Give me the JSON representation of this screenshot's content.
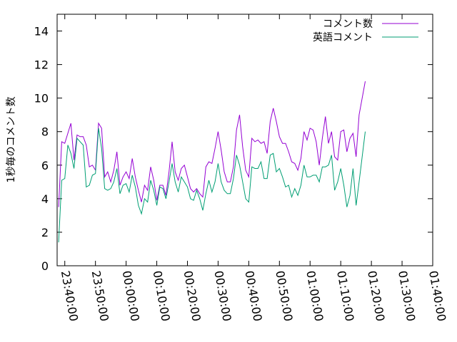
{
  "chart_data": {
    "type": "line",
    "title": "",
    "xlabel": "",
    "ylabel": "1秒毎のコメント数",
    "ylim": [
      0,
      15
    ],
    "yticks": [
      "0",
      "2",
      "4",
      "6",
      "8",
      "10",
      "12",
      "14"
    ],
    "xlim": [
      "23:37:30",
      "01:40:00"
    ],
    "xticks": [
      "23:40:00",
      "23:50:00",
      "00:00:00",
      "00:10:00",
      "00:20:00",
      "00:30:00",
      "00:40:00",
      "00:50:00",
      "01:00:00",
      "01:10:00",
      "01:20:00",
      "01:30:00",
      "01:40:00"
    ],
    "legend_position": "top-right",
    "grid": false,
    "x_step_seconds": 60,
    "x_start": "23:38:00",
    "series": [
      {
        "name": "コメント数",
        "color": "#9400d3",
        "values": [
          3.5,
          7.4,
          7.3,
          7.9,
          8.5,
          6.3,
          7.8,
          7.7,
          7.7,
          7.2,
          5.9,
          6.0,
          5.7,
          8.5,
          8.2,
          5.3,
          5.6,
          5.0,
          5.7,
          6.8,
          4.8,
          5.3,
          5.6,
          5.2,
          6.4,
          5.3,
          4.5,
          3.8,
          4.8,
          4.5,
          5.9,
          5.1,
          3.9,
          4.8,
          4.8,
          4.2,
          5.6,
          7.4,
          5.6,
          5.1,
          5.8,
          6.0,
          5.3,
          4.6,
          4.4,
          4.6,
          4.3,
          4.1,
          5.9,
          6.2,
          6.1,
          7.0,
          8.0,
          6.9,
          5.6,
          5.0,
          5.0,
          5.9,
          8.1,
          9.0,
          7.1,
          5.7,
          5.3,
          7.6,
          7.4,
          7.5,
          7.3,
          7.4,
          6.7,
          8.6,
          9.4,
          8.6,
          7.7,
          7.3,
          7.3,
          6.8,
          6.2,
          6.1,
          5.7,
          6.4,
          8.0,
          7.5,
          8.2,
          8.1,
          7.4,
          6.0,
          7.6,
          8.9,
          7.3,
          8.0,
          6.5,
          6.3,
          8.0,
          8.1,
          6.8,
          7.6,
          7.9,
          6.5,
          9.0,
          10.0,
          11.0
        ]
      },
      {
        "name": "英語コメント",
        "color": "#009e73",
        "values": [
          1.4,
          5.1,
          5.2,
          7.2,
          6.7,
          5.8,
          7.6,
          7.4,
          7.2,
          4.7,
          4.8,
          5.4,
          5.5,
          8.2,
          7.0,
          4.6,
          4.5,
          4.6,
          5.0,
          5.8,
          4.3,
          4.8,
          4.9,
          4.4,
          5.4,
          4.7,
          3.6,
          3.1,
          4.0,
          3.8,
          5.1,
          4.5,
          3.6,
          4.7,
          4.6,
          4.0,
          5.0,
          6.1,
          5.0,
          4.4,
          5.3,
          5.0,
          4.7,
          4.0,
          3.9,
          4.5,
          4.0,
          3.3,
          4.3,
          5.1,
          4.4,
          5.0,
          6.1,
          5.0,
          4.5,
          4.3,
          4.3,
          5.2,
          6.6,
          6.0,
          5.0,
          4.0,
          3.8,
          5.9,
          5.8,
          5.8,
          6.2,
          5.2,
          5.2,
          6.6,
          6.7,
          5.6,
          5.8,
          5.3,
          4.7,
          4.8,
          4.1,
          4.6,
          4.2,
          4.8,
          6.0,
          5.3,
          5.3,
          5.4,
          5.4,
          5.0,
          5.9,
          5.9,
          6.0,
          6.6,
          4.5,
          5.0,
          5.8,
          4.8,
          3.5,
          4.2,
          5.8,
          3.6,
          5.0,
          6.5,
          8.0
        ]
      }
    ]
  }
}
